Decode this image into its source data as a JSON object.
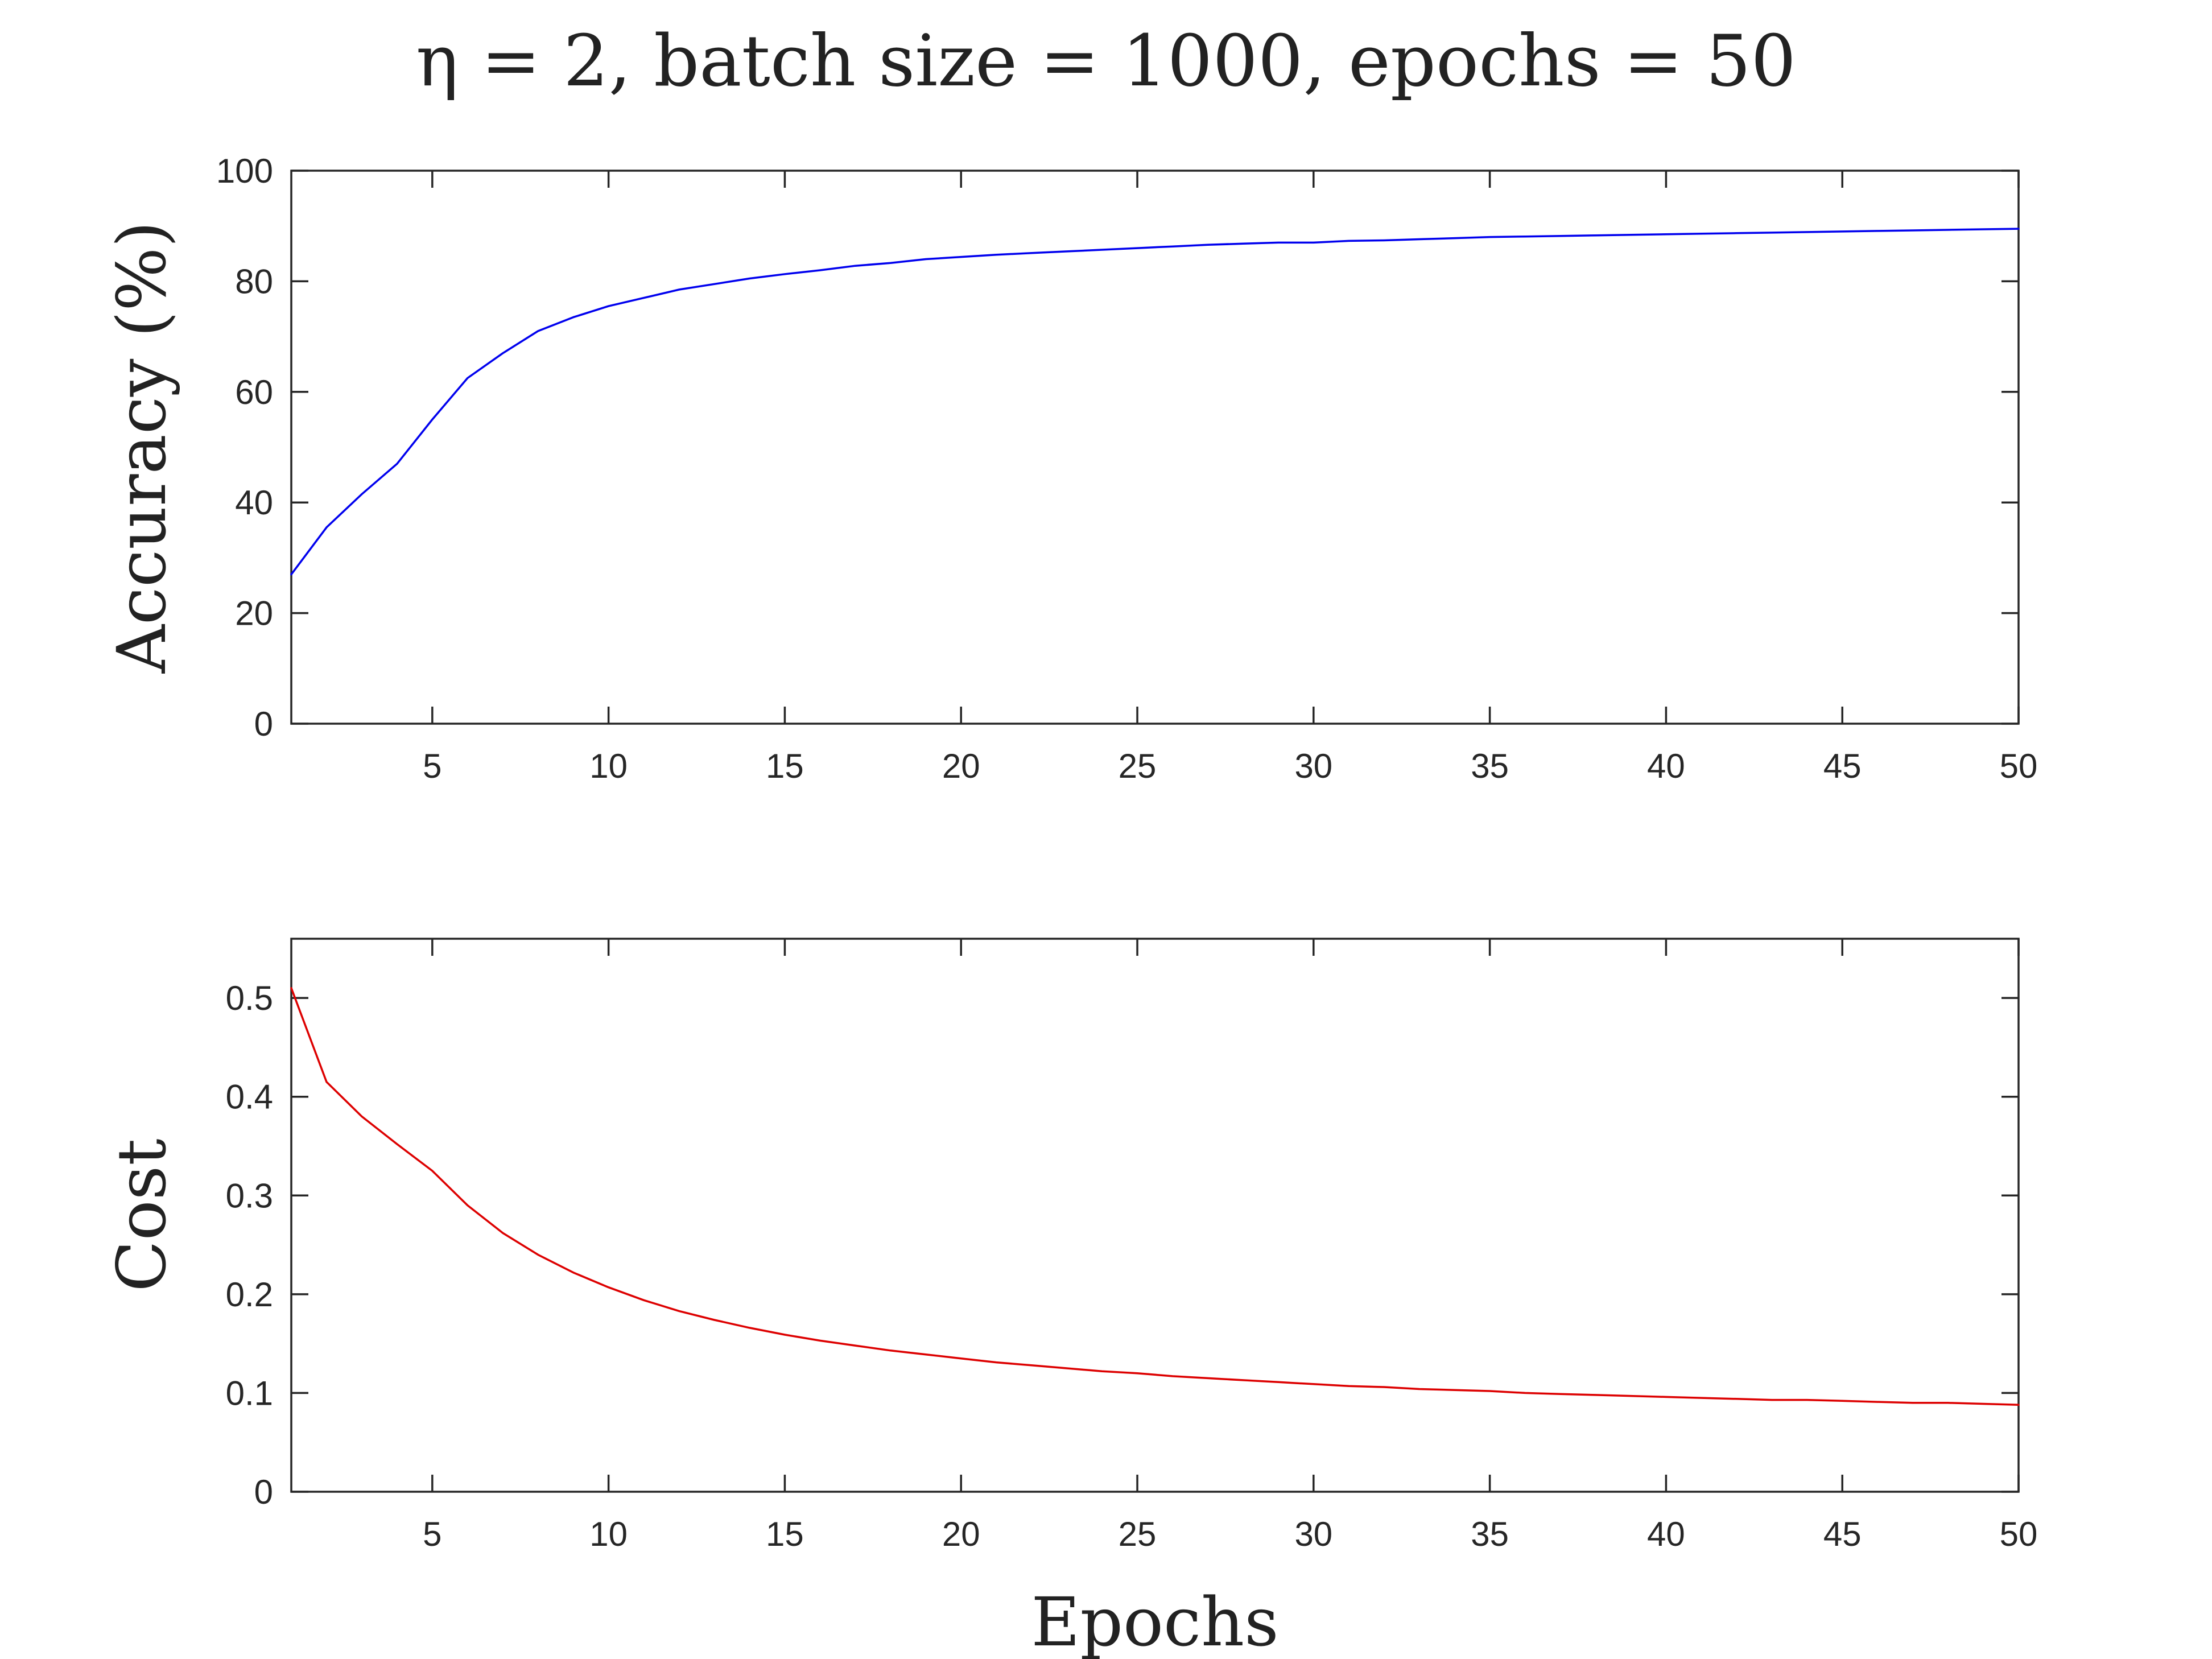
{
  "chart_data": [
    {
      "type": "line",
      "title": "η = 2, batch size = 1000, epochs = 50",
      "xlabel": "",
      "ylabel": "Accuracy (%)",
      "xlim": [
        1,
        50
      ],
      "ylim": [
        0,
        100
      ],
      "xticks": [
        5,
        10,
        15,
        20,
        25,
        30,
        35,
        40,
        45,
        50
      ],
      "yticks": [
        0,
        20,
        40,
        60,
        80,
        100
      ],
      "grid": false,
      "series": [
        {
          "color": "#0000ee",
          "x": [
            1,
            2,
            3,
            4,
            5,
            6,
            7,
            8,
            9,
            10,
            11,
            12,
            13,
            14,
            15,
            16,
            17,
            18,
            19,
            20,
            21,
            22,
            23,
            24,
            25,
            26,
            27,
            28,
            29,
            30,
            31,
            32,
            33,
            34,
            35,
            36,
            37,
            38,
            39,
            40,
            41,
            42,
            43,
            44,
            45,
            46,
            47,
            48,
            49,
            50
          ],
          "values": [
            27,
            35.5,
            41.5,
            47,
            55,
            62.5,
            67,
            71,
            73.5,
            75.5,
            77,
            78.5,
            79.5,
            80.5,
            81.3,
            82,
            82.8,
            83.3,
            84,
            84.4,
            84.8,
            85.1,
            85.4,
            85.7,
            86,
            86.3,
            86.6,
            86.8,
            87,
            87,
            87.3,
            87.4,
            87.6,
            87.8,
            88,
            88.1,
            88.2,
            88.3,
            88.4,
            88.5,
            88.6,
            88.7,
            88.8,
            88.9,
            89,
            89.1,
            89.2,
            89.3,
            89.4,
            89.5
          ]
        }
      ]
    },
    {
      "type": "line",
      "xlabel": "Epochs",
      "ylabel": "Cost",
      "xlim": [
        1,
        50
      ],
      "ylim": [
        0,
        0.56
      ],
      "xticks": [
        5,
        10,
        15,
        20,
        25,
        30,
        35,
        40,
        45,
        50
      ],
      "yticks": [
        0,
        0.1,
        0.2,
        0.3,
        0.4,
        0.5
      ],
      "grid": false,
      "series": [
        {
          "color": "#dd0000",
          "x": [
            1,
            2,
            3,
            4,
            5,
            6,
            7,
            8,
            9,
            10,
            11,
            12,
            13,
            14,
            15,
            16,
            17,
            18,
            19,
            20,
            21,
            22,
            23,
            24,
            25,
            26,
            27,
            28,
            29,
            30,
            31,
            32,
            33,
            34,
            35,
            36,
            37,
            38,
            39,
            40,
            41,
            42,
            43,
            44,
            45,
            46,
            47,
            48,
            49,
            50
          ],
          "values": [
            0.51,
            0.415,
            0.38,
            0.352,
            0.325,
            0.29,
            0.262,
            0.24,
            0.222,
            0.207,
            0.194,
            0.183,
            0.174,
            0.166,
            0.159,
            0.153,
            0.148,
            0.143,
            0.139,
            0.135,
            0.131,
            0.128,
            0.125,
            0.122,
            0.12,
            0.117,
            0.115,
            0.113,
            0.111,
            0.109,
            0.107,
            0.106,
            0.104,
            0.103,
            0.102,
            0.1,
            0.099,
            0.098,
            0.097,
            0.096,
            0.095,
            0.094,
            0.093,
            0.093,
            0.092,
            0.091,
            0.09,
            0.09,
            0.089,
            0.088
          ]
        }
      ]
    }
  ]
}
